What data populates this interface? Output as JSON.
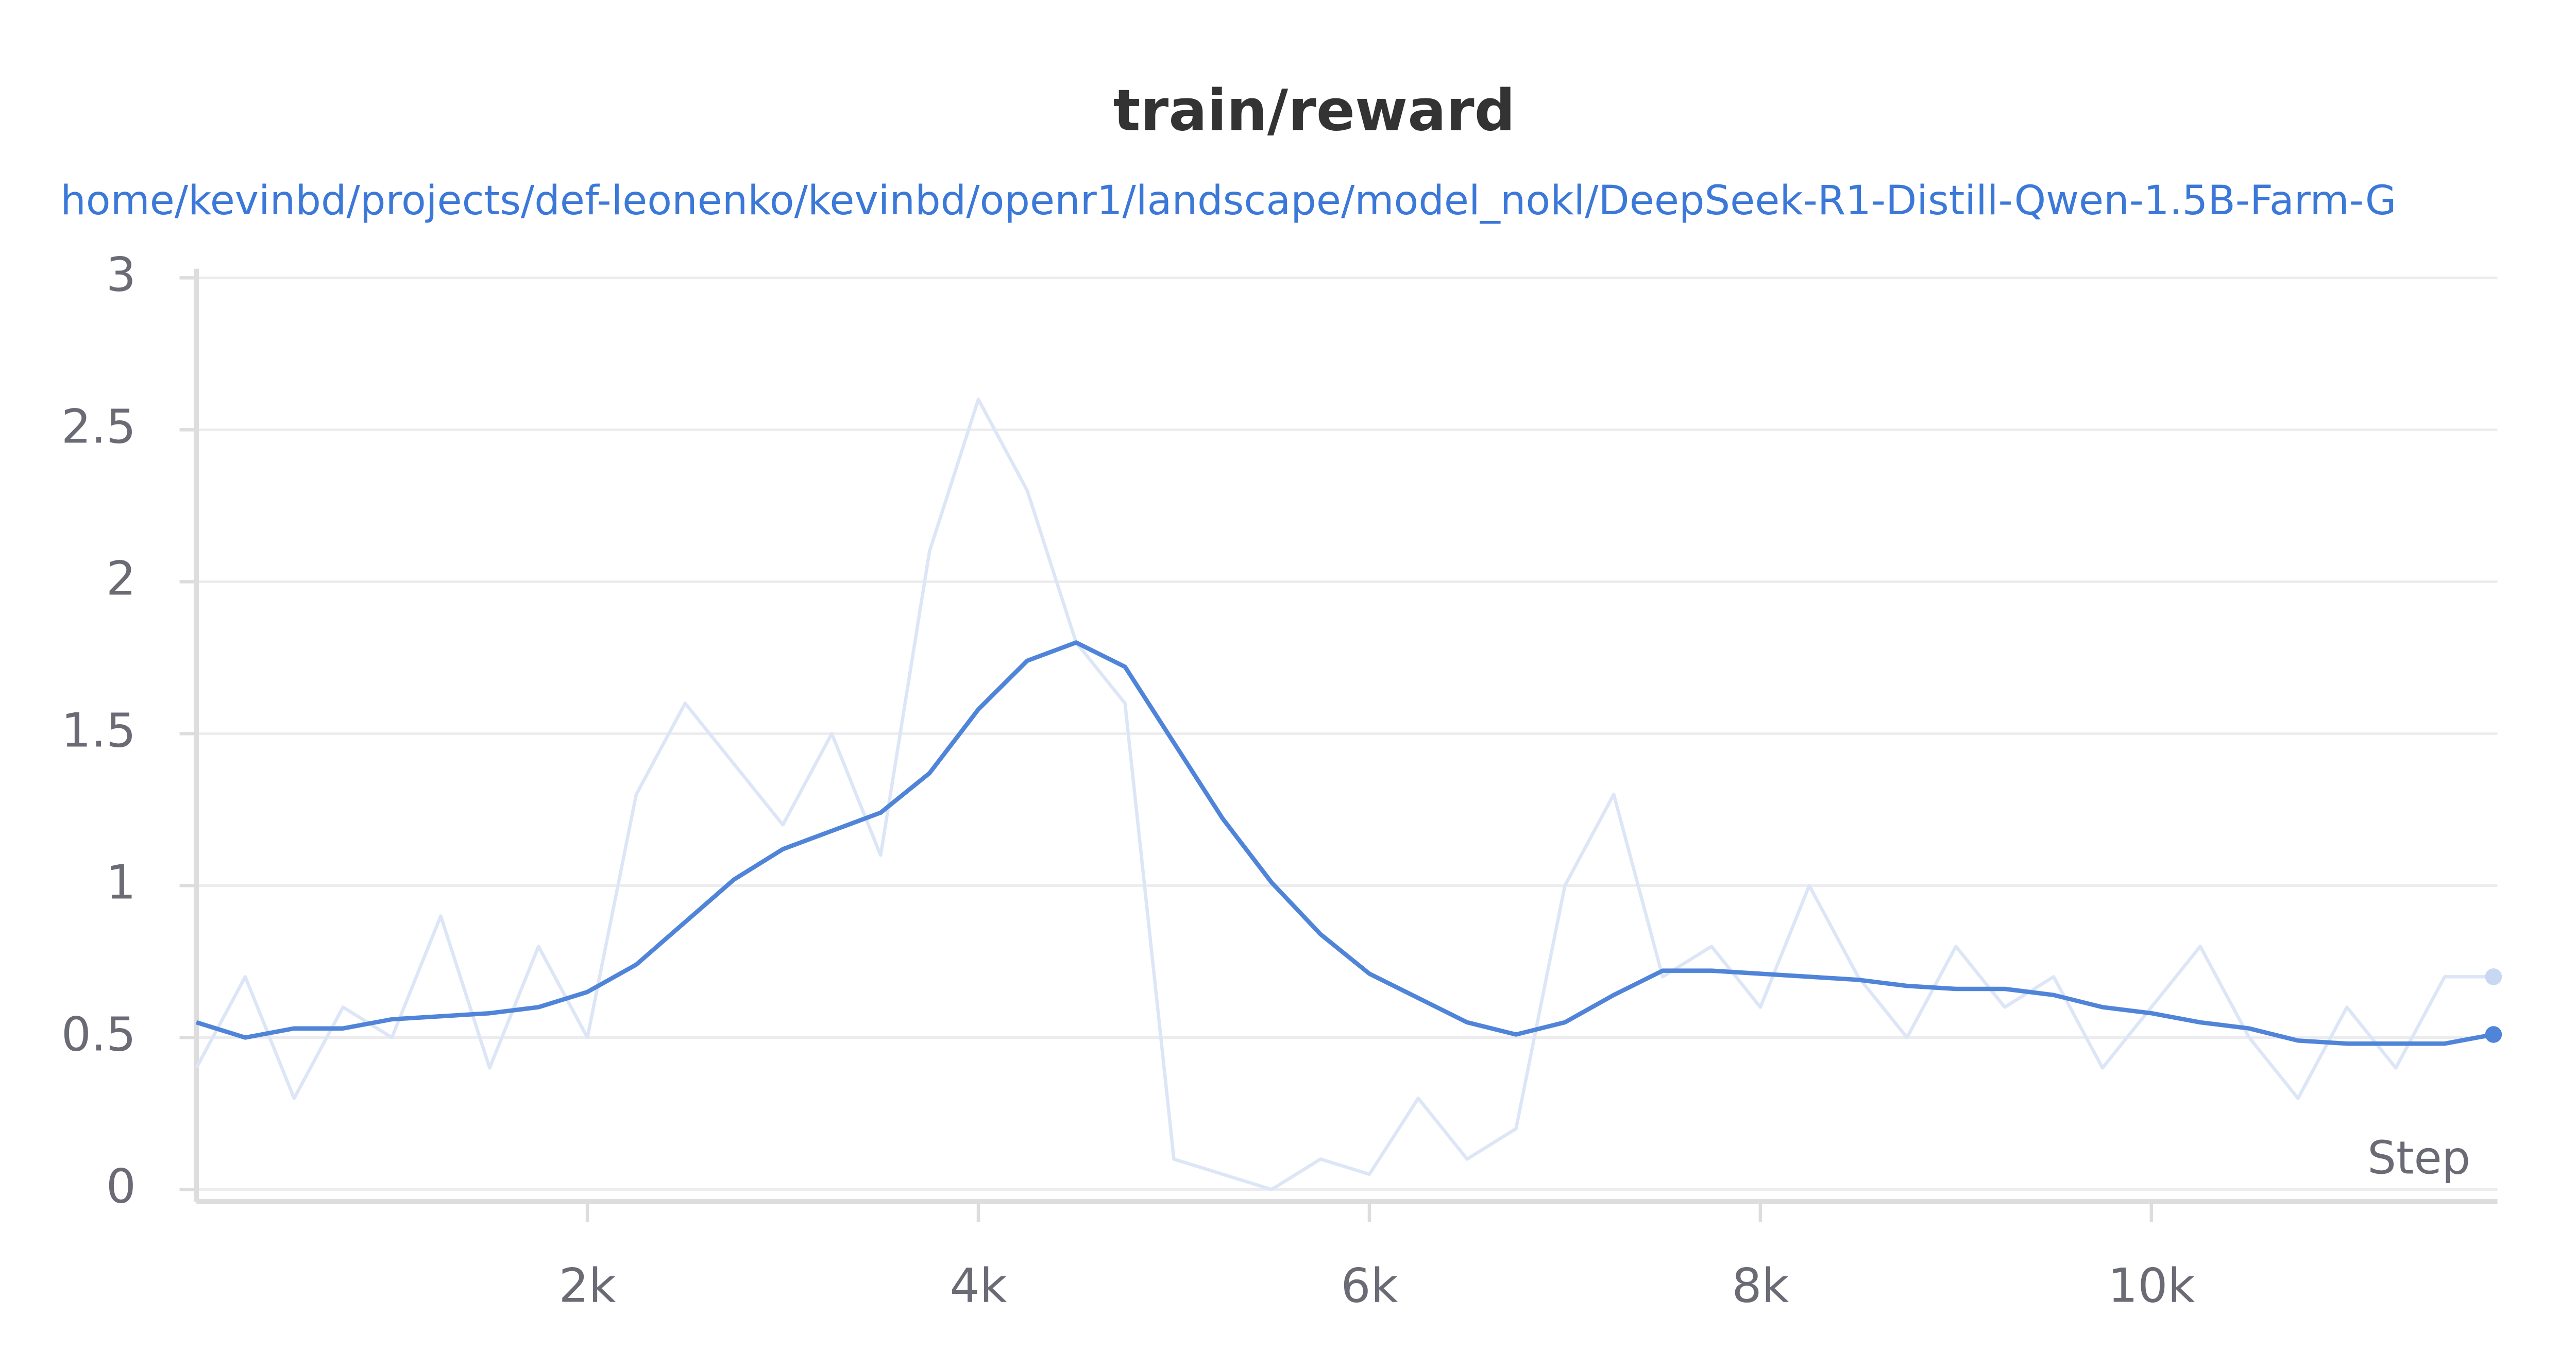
{
  "chart_data": {
    "type": "line",
    "title": "train/reward",
    "subtitle": "home/kevinbd/projects/def-leonenko/kevinbd/openr1/landscape/model_nokl/DeepSeek-R1-Distill-Qwen-1.5B-Farm-G",
    "x_label": "Step",
    "x": [
      0,
      250,
      500,
      750,
      1000,
      1250,
      1500,
      1750,
      2000,
      2250,
      2500,
      2750,
      3000,
      3250,
      3500,
      3750,
      4000,
      4250,
      4500,
      4750,
      5000,
      5250,
      5500,
      5750,
      6000,
      6250,
      6500,
      6750,
      7000,
      7250,
      7500,
      7750,
      8000,
      8250,
      8500,
      8750,
      9000,
      9250,
      9500,
      9750,
      10000,
      10250,
      10500,
      10750,
      11000,
      11250,
      11500,
      11750
    ],
    "series": [
      {
        "color": "#dde6f6",
        "values": [
          0.4,
          0.7,
          0.3,
          0.6,
          0.5,
          0.9,
          0.4,
          0.8,
          0.5,
          1.3,
          1.6,
          1.4,
          1.2,
          1.5,
          1.1,
          2.1,
          2.6,
          2.3,
          1.8,
          1.6,
          0.1,
          0.05,
          0,
          0.1,
          0.05,
          0.3,
          0.1,
          0.2,
          1.0,
          1.3,
          0.7,
          0.8,
          0.6,
          1.0,
          0.7,
          0.5,
          0.8,
          0.6,
          0.7,
          0.4,
          0.6,
          0.8,
          0.5,
          0.3,
          0.6,
          0.4,
          0.7,
          0.7
        ]
      },
      {
        "color": "#4f84d9",
        "values": [
          0.55,
          0.5,
          0.53,
          0.53,
          0.56,
          0.57,
          0.58,
          0.6,
          0.65,
          0.74,
          0.88,
          1.02,
          1.12,
          1.18,
          1.24,
          1.37,
          1.58,
          1.74,
          1.8,
          1.72,
          1.47,
          1.22,
          1.01,
          0.84,
          0.71,
          0.63,
          0.55,
          0.51,
          0.55,
          0.64,
          0.72,
          0.72,
          0.71,
          0.7,
          0.69,
          0.67,
          0.66,
          0.66,
          0.64,
          0.6,
          0.58,
          0.55,
          0.53,
          0.49,
          0.48,
          0.48,
          0.48,
          0.51
        ]
      }
    ],
    "xlim": [
      0,
      11770
    ],
    "ylim": [
      -0.04,
      3.03
    ],
    "xticks": [
      {
        "value": 2000,
        "label": "2k"
      },
      {
        "value": 4000,
        "label": "4k"
      },
      {
        "value": 6000,
        "label": "6k"
      },
      {
        "value": 8000,
        "label": "8k"
      },
      {
        "value": 10000,
        "label": "10k"
      }
    ],
    "yticks": [
      0,
      0.5,
      1,
      1.5,
      2,
      2.5,
      3
    ],
    "grid": true
  }
}
